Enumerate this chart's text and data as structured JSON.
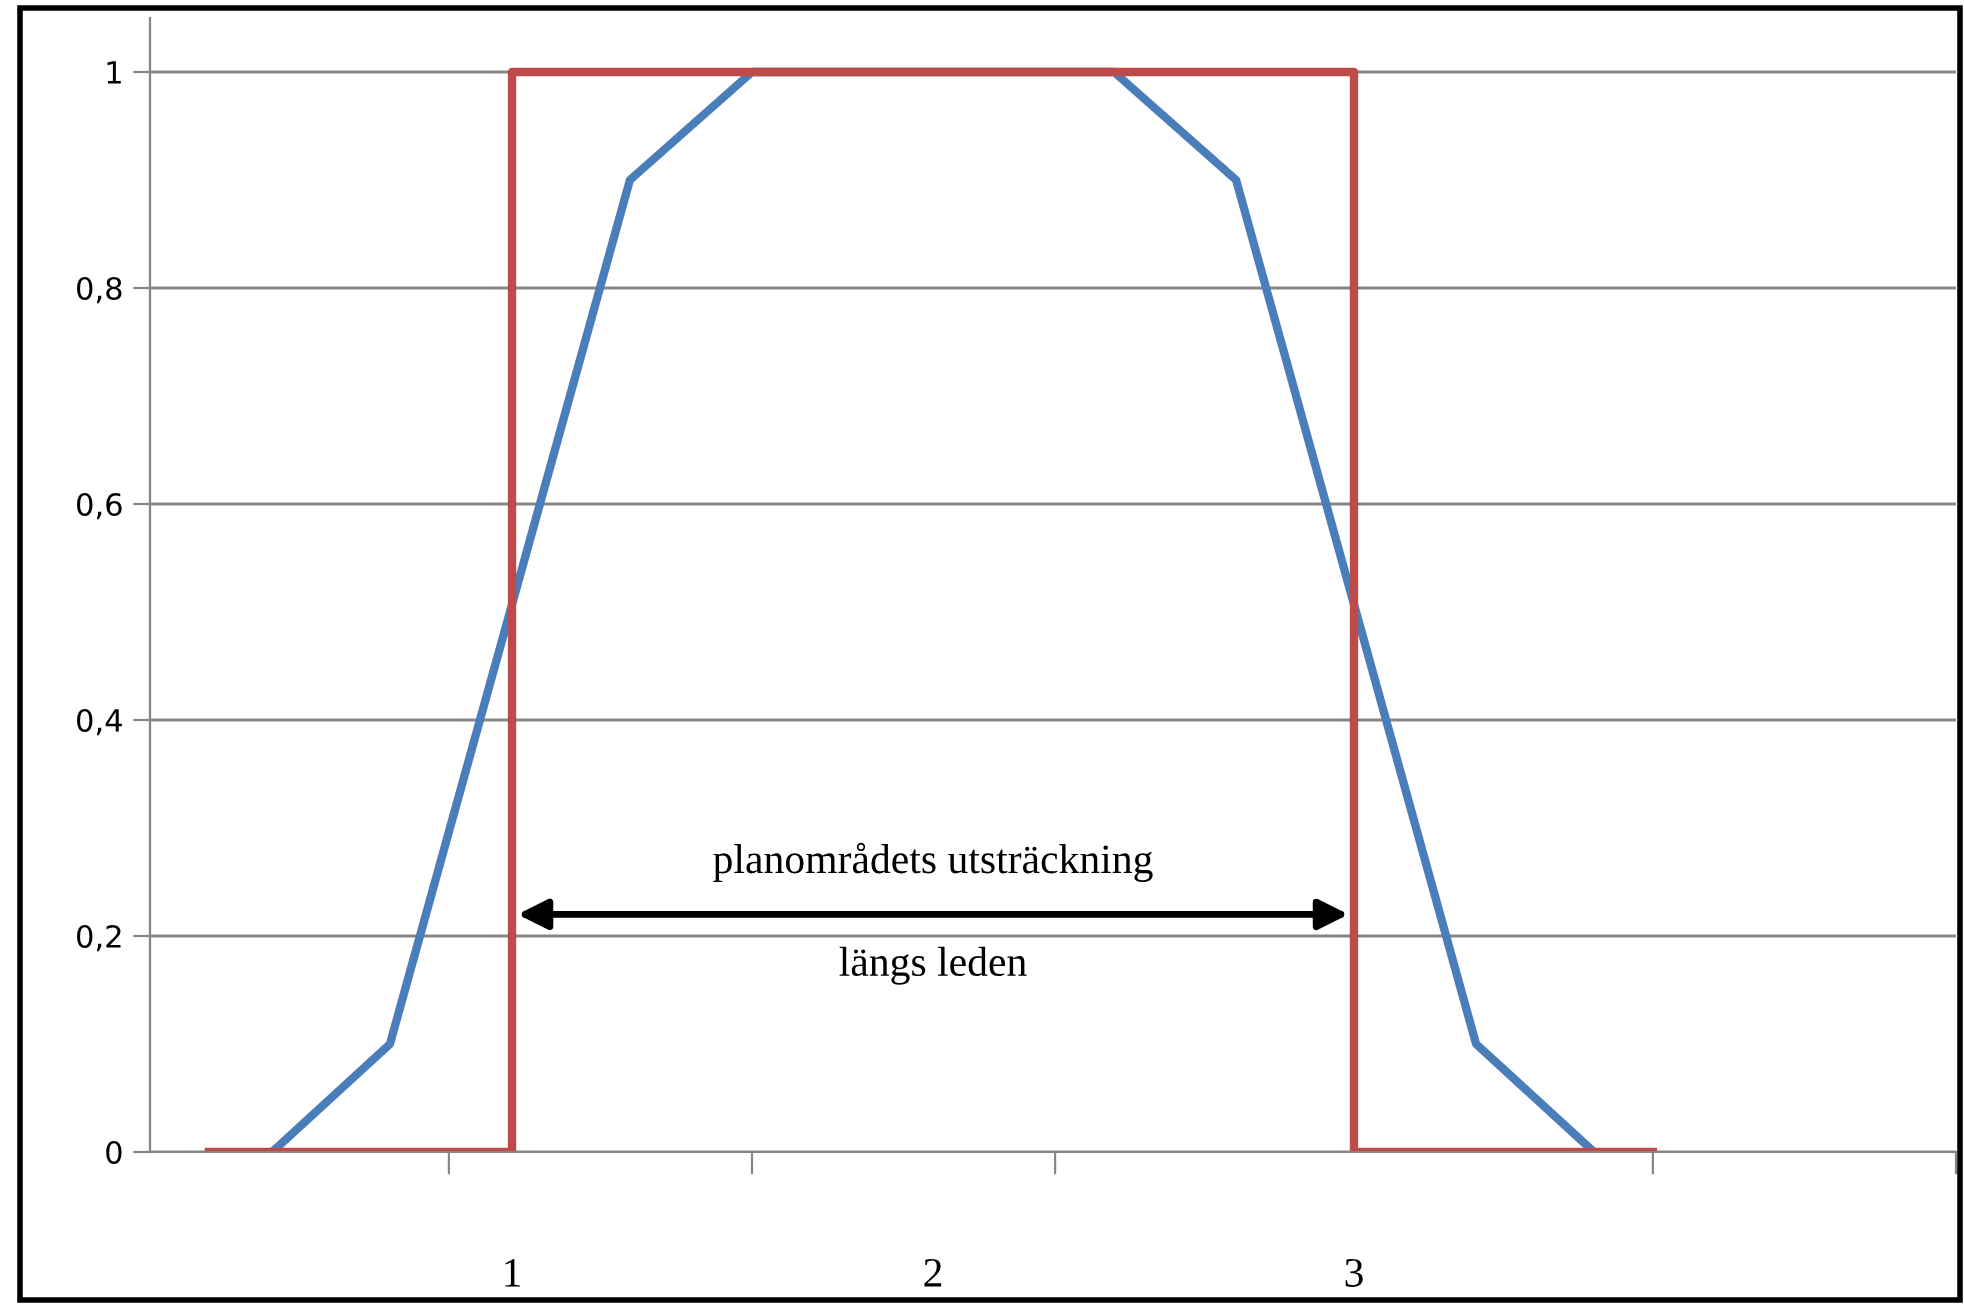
{
  "chart_data": {
    "type": "line",
    "series": [
      {
        "color": "#4a7ebb",
        "x": [
          0.43,
          0.71,
          1.28,
          1.57,
          2.43,
          2.72,
          3.29,
          3.57
        ],
        "values": [
          0,
          0.1,
          0.9,
          1,
          1,
          0.9,
          0.1,
          0
        ]
      },
      {
        "color": "#be4b48",
        "x": [
          0.28,
          1,
          1,
          3,
          3,
          3.71
        ],
        "values": [
          0,
          0,
          1,
          1,
          0,
          0
        ]
      }
    ],
    "xlim": [
      0.14,
      4.43
    ],
    "xticks": [
      {
        "value": 0.85,
        "label": null
      },
      1,
      {
        "value": 1.57,
        "label": null
      },
      2,
      {
        "value": 2.29,
        "label": null
      },
      3,
      {
        "value": 3.71,
        "label": null
      },
      {
        "value": 4.43,
        "label": null
      }
    ],
    "ylim": [
      0,
      1.05
    ],
    "yticks": [
      {
        "value": 0,
        "label": "0"
      },
      {
        "value": 0.2,
        "label": "0,2"
      },
      {
        "value": 0.4,
        "label": "0,4"
      },
      {
        "value": 0.6,
        "label": "0,6"
      },
      {
        "value": 0.8,
        "label": "0,8"
      },
      {
        "value": 1,
        "label": "1"
      }
    ],
    "grid": "y",
    "marker": "none",
    "line_style": "solid",
    "annotations": [
      "planområdets utsträckning",
      "längs leden"
    ]
  }
}
